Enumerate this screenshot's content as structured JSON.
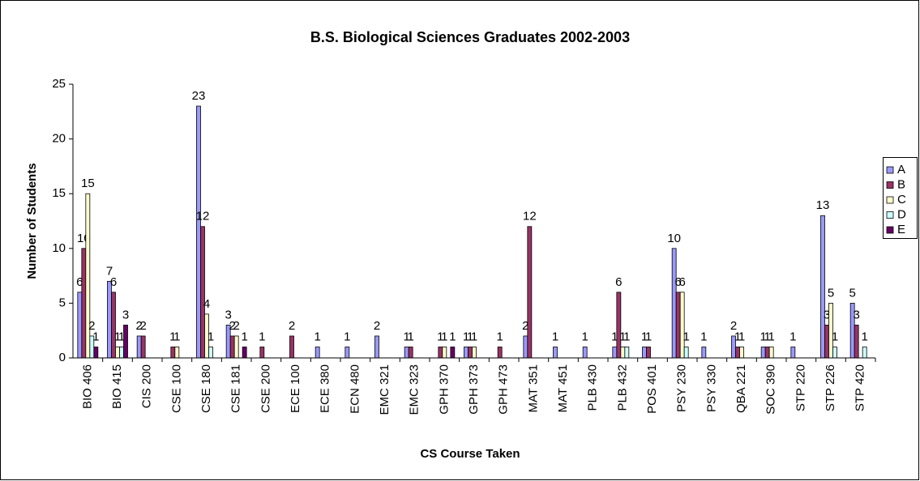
{
  "chart_data": {
    "type": "bar",
    "title": "B.S. Biological Sciences Graduates 2002-2003",
    "x_label": "CS Course Taken",
    "y_label": "Number of Students",
    "categories": [
      "BIO 406",
      "BIO 415",
      "CIS 200",
      "CSE 100",
      "CSE 180",
      "CSE 181",
      "CSE 200",
      "ECE 100",
      "ECE 380",
      "ECN 480",
      "EMC 321",
      "EMC 323",
      "GPH 370",
      "GPH 373",
      "GPH 473",
      "MAT 351",
      "MAT 451",
      "PLB 430",
      "PLB 432",
      "POS 401",
      "PSY 230",
      "PSY 330",
      "QBA 221",
      "SOC 390",
      "STP 220",
      "STP 226",
      "STP 420"
    ],
    "series": [
      {
        "name": "A",
        "color": "#9999ff",
        "values": [
          6,
          7,
          2,
          null,
          23,
          3,
          null,
          null,
          1,
          1,
          2,
          1,
          null,
          1,
          null,
          2,
          1,
          1,
          1,
          1,
          10,
          1,
          2,
          1,
          1,
          13,
          5
        ]
      },
      {
        "name": "B",
        "color": "#993366",
        "values": [
          10,
          6,
          2,
          1,
          12,
          2,
          1,
          2,
          null,
          null,
          null,
          1,
          1,
          1,
          1,
          12,
          null,
          null,
          6,
          1,
          6,
          null,
          1,
          1,
          null,
          3,
          3
        ]
      },
      {
        "name": "C",
        "color": "#ffffcc",
        "values": [
          15,
          1,
          null,
          1,
          4,
          2,
          null,
          null,
          null,
          null,
          null,
          null,
          1,
          1,
          null,
          null,
          null,
          null,
          1,
          null,
          6,
          null,
          1,
          1,
          null,
          5,
          null
        ]
      },
      {
        "name": "D",
        "color": "#ccffff",
        "values": [
          2,
          1,
          null,
          null,
          1,
          null,
          null,
          null,
          null,
          null,
          null,
          null,
          null,
          null,
          null,
          null,
          null,
          null,
          1,
          null,
          1,
          null,
          null,
          null,
          null,
          1,
          1
        ]
      },
      {
        "name": "E",
        "color": "#660066",
        "values": [
          1,
          3,
          null,
          null,
          null,
          1,
          null,
          null,
          null,
          null,
          null,
          null,
          1,
          null,
          null,
          null,
          null,
          null,
          null,
          null,
          null,
          null,
          null,
          null,
          null,
          null,
          null
        ]
      }
    ],
    "ylim": [
      0,
      25
    ],
    "yticks": [
      0,
      5,
      10,
      15,
      20,
      25
    ],
    "grid": false,
    "legend": "right"
  }
}
